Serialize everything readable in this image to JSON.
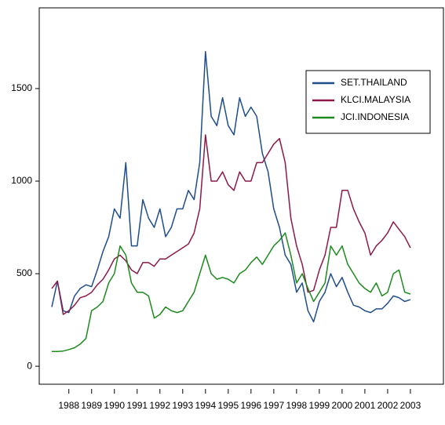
{
  "chart_data": {
    "type": "line",
    "x": [
      1987.25,
      1987.5,
      1987.75,
      1988,
      1988.25,
      1988.5,
      1988.75,
      1989,
      1989.25,
      1989.5,
      1989.75,
      1990,
      1990.25,
      1990.5,
      1990.75,
      1991,
      1991.25,
      1991.5,
      1991.75,
      1992,
      1992.25,
      1992.5,
      1992.75,
      1993,
      1993.25,
      1993.5,
      1993.75,
      1994,
      1994.25,
      1994.5,
      1994.75,
      1995,
      1995.25,
      1995.5,
      1995.75,
      1996,
      1996.25,
      1996.5,
      1996.75,
      1997,
      1997.25,
      1997.5,
      1997.75,
      1998,
      1998.25,
      1998.5,
      1998.75,
      1999,
      1999.25,
      1999.5,
      1999.75,
      2000,
      2000.25,
      2000.5,
      2000.75,
      2001,
      2001.25,
      2001.5,
      2001.75,
      2002,
      2002.25,
      2002.5,
      2002.75,
      2003
    ],
    "series": [
      {
        "name": "SET.THAILAND",
        "color": "#1f4e8c",
        "values": [
          320,
          460,
          300,
          290,
          380,
          420,
          440,
          430,
          520,
          620,
          700,
          850,
          800,
          1100,
          650,
          650,
          900,
          800,
          750,
          850,
          700,
          750,
          850,
          850,
          950,
          900,
          1100,
          1700,
          1350,
          1300,
          1450,
          1300,
          1250,
          1450,
          1350,
          1400,
          1350,
          1150,
          1050,
          850,
          750,
          600,
          550,
          400,
          450,
          300,
          240,
          350,
          400,
          500,
          430,
          480,
          400,
          330,
          320,
          300,
          290,
          310,
          310,
          340,
          380,
          370,
          350,
          360
        ]
      },
      {
        "name": "KLCI.MALAYSIA",
        "color": "#8b1a4a",
        "values": [
          420,
          460,
          280,
          300,
          330,
          370,
          380,
          400,
          440,
          470,
          520,
          580,
          600,
          570,
          520,
          500,
          560,
          560,
          540,
          580,
          580,
          600,
          620,
          640,
          660,
          720,
          850,
          1250,
          1000,
          1000,
          1050,
          980,
          950,
          1050,
          1000,
          1000,
          1100,
          1100,
          1150,
          1200,
          1230,
          1100,
          800,
          650,
          550,
          400,
          410,
          520,
          600,
          750,
          750,
          950,
          950,
          850,
          780,
          720,
          600,
          650,
          680,
          720,
          780,
          740,
          700,
          640
        ]
      },
      {
        "name": "JCI.INDONESIA",
        "color": "#1e8a1e",
        "values": [
          80,
          80,
          82,
          90,
          100,
          120,
          150,
          300,
          320,
          350,
          450,
          500,
          650,
          600,
          450,
          400,
          400,
          380,
          260,
          280,
          320,
          300,
          290,
          300,
          350,
          400,
          500,
          600,
          500,
          470,
          480,
          470,
          450,
          500,
          520,
          560,
          590,
          550,
          600,
          650,
          680,
          720,
          600,
          450,
          500,
          420,
          350,
          400,
          450,
          650,
          600,
          650,
          550,
          500,
          450,
          420,
          400,
          450,
          380,
          400,
          500,
          520,
          400,
          390
        ]
      }
    ],
    "xlim": [
      1986.7,
      2004.45
    ],
    "xticks": [
      1988,
      1989,
      1990,
      1991,
      1992,
      1993,
      1994,
      1995,
      1996,
      1997,
      1998,
      1999,
      2000,
      2001,
      2002,
      2003
    ],
    "ylim": [
      -97,
      1936
    ],
    "yticks": [
      0,
      500,
      1000,
      1500
    ],
    "legend": "upper right"
  }
}
